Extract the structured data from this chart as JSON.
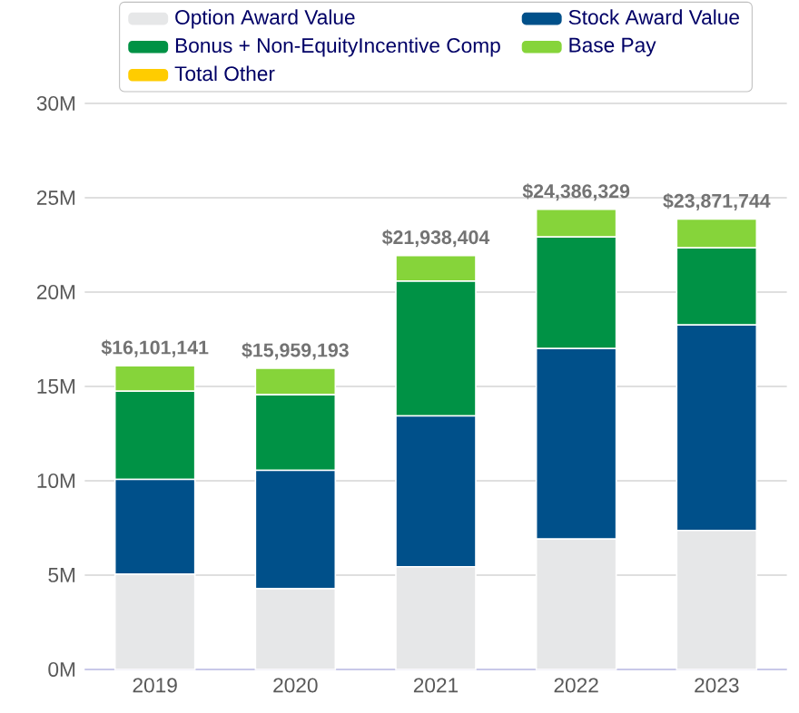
{
  "chart_data": {
    "type": "bar",
    "stacked": true,
    "categories": [
      "2019",
      "2020",
      "2021",
      "2022",
      "2023"
    ],
    "series": [
      {
        "name": "Option Award Value",
        "color": "#e6e7e8",
        "values": [
          5050000,
          4280000,
          5440000,
          6910000,
          7370000
        ]
      },
      {
        "name": "Stock Award Value",
        "color": "#00508a",
        "values": [
          5020000,
          6270000,
          8000000,
          10100000,
          10890000
        ]
      },
      {
        "name": "Bonus + Non-EquityIncentive Comp",
        "color": "#009245",
        "values": [
          4680000,
          4010000,
          7140000,
          5910000,
          4080000
        ]
      },
      {
        "name": "Base Pay",
        "color": "#86d43a",
        "values": [
          1351141,
          1399193,
          1358404,
          1466329,
          1531744
        ]
      },
      {
        "name": "Total Other",
        "color": "#ffcc00",
        "values": [
          0,
          0,
          0,
          0,
          0
        ]
      }
    ],
    "totals": [
      "$16,101,141",
      "$15,959,193",
      "$21,938,404",
      "$24,386,329",
      "$23,871,744"
    ],
    "ylim": [
      0,
      30000000
    ],
    "yticks": [
      {
        "value": 0,
        "label": "0M"
      },
      {
        "value": 5000000,
        "label": "5M"
      },
      {
        "value": 10000000,
        "label": "10M"
      },
      {
        "value": 15000000,
        "label": "15M"
      },
      {
        "value": 20000000,
        "label": "20M"
      },
      {
        "value": 25000000,
        "label": "25M"
      },
      {
        "value": 30000000,
        "label": "30M"
      }
    ],
    "grid": "y",
    "legend": "top"
  }
}
